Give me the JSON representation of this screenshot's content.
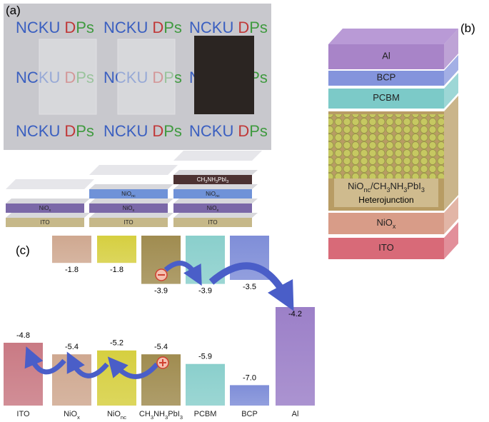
{
  "panel_labels": {
    "a": "(a)",
    "b": "(b)",
    "c": "(c)"
  },
  "photo": {
    "brand": [
      "NCKU",
      "D",
      "Ps"
    ]
  },
  "materials": {
    "ito": [
      "ITO"
    ],
    "niox": [
      "NiO",
      "x"
    ],
    "nionc": [
      "NiO",
      "nc"
    ],
    "pero": [
      "CH",
      "3",
      "NH",
      "3",
      "PbI",
      "3"
    ],
    "pcbm": [
      "PCBM"
    ],
    "bcp": [
      "BCP"
    ],
    "al": [
      "Al"
    ]
  },
  "device": {
    "heterojunction": [
      "NiO",
      "nc",
      "/CH",
      "3",
      "NH",
      "3",
      "PbI",
      "3"
    ],
    "heterojunction_line2": "Heterojunction"
  },
  "energy": {
    "lumo": [
      {
        "material": "niox",
        "value": "-1.8"
      },
      {
        "material": "nionc",
        "value": "-1.8"
      },
      {
        "material": "pero",
        "value": "-3.9"
      },
      {
        "material": "pcbm",
        "value": "-3.9"
      },
      {
        "material": "bcp",
        "value": "-3.5"
      }
    ],
    "homo": [
      {
        "material": "ito",
        "value": "-4.8"
      },
      {
        "material": "niox",
        "value": "-5.4"
      },
      {
        "material": "nionc",
        "value": "-5.2"
      },
      {
        "material": "pero",
        "value": "-5.4"
      },
      {
        "material": "pcbm",
        "value": "-5.9"
      },
      {
        "material": "bcp",
        "value": "-7.0"
      }
    ],
    "al": {
      "material": "al",
      "value": "-4.2"
    }
  }
}
